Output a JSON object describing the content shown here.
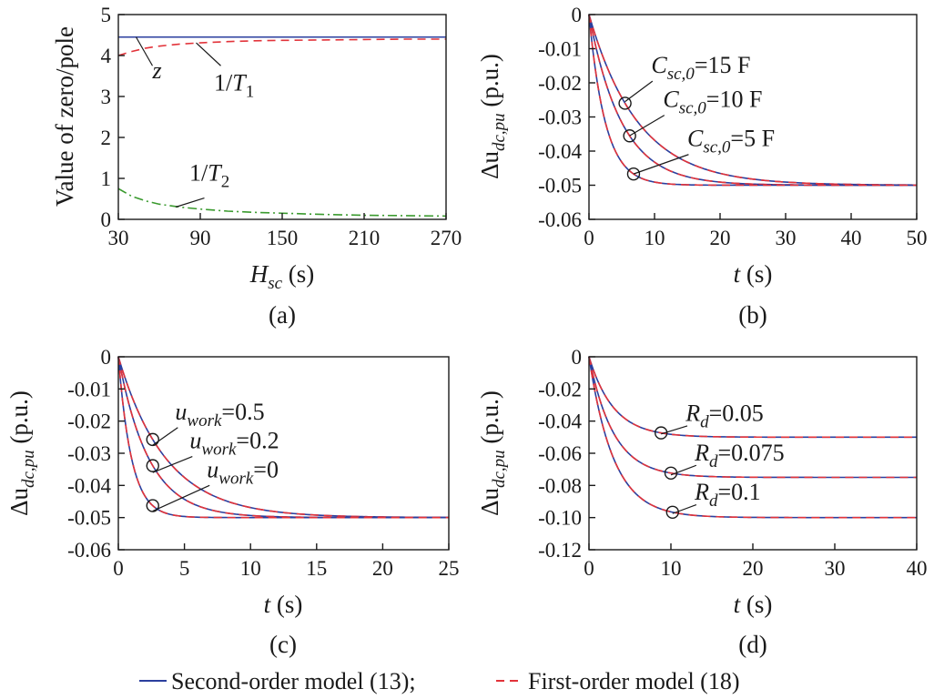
{
  "colors": {
    "blue": "#2b3f9e",
    "red": "#e2333a",
    "green": "#3a9a2e",
    "axis": "#1a1a1a"
  },
  "legend": {
    "solid_label": "Second-order model (13);",
    "dashed_label": "First-order model (18)"
  },
  "chart_data": [
    {
      "id": "a",
      "type": "line",
      "panel_label": "(a)",
      "xlabel_main": "H",
      "xlabel_sub": "sc",
      "xlabel_unit": " (s)",
      "ylabel": "Value of zero/pole",
      "xlim": [
        30,
        270
      ],
      "ylim": [
        0,
        5
      ],
      "xticks": [
        30,
        90,
        150,
        210,
        270
      ],
      "xtick_labels": [
        "30",
        "90",
        "150",
        "210",
        "270"
      ],
      "yticks": [
        0,
        1,
        2,
        3,
        4,
        5
      ],
      "ytick_labels": [
        "0",
        "1",
        "2",
        "3",
        "4",
        "5"
      ],
      "series": [
        {
          "name": "z",
          "style": "solid",
          "color": "blue",
          "x": [
            30,
            270
          ],
          "y": [
            4.45,
            4.45
          ]
        },
        {
          "name": "1/T1",
          "style": "dashed",
          "color": "red",
          "x": [
            30,
            40,
            50,
            60,
            75,
            90,
            110,
            130,
            150,
            180,
            210,
            240,
            270
          ],
          "y": [
            4.0,
            4.1,
            4.18,
            4.23,
            4.28,
            4.31,
            4.34,
            4.36,
            4.37,
            4.38,
            4.39,
            4.4,
            4.4
          ]
        },
        {
          "name": "1/T2",
          "style": "dashdot",
          "color": "green",
          "x": [
            30,
            40,
            50,
            60,
            75,
            90,
            110,
            130,
            150,
            180,
            210,
            240,
            270
          ],
          "y": [
            0.75,
            0.56,
            0.45,
            0.37,
            0.3,
            0.25,
            0.2,
            0.17,
            0.15,
            0.12,
            0.1,
            0.09,
            0.08
          ]
        }
      ],
      "annotations": [
        {
          "id": "z",
          "main": "z",
          "sub": "",
          "x": 55,
          "y": 3.45,
          "leader": [
            [
              55,
              3.75
            ],
            [
              43,
              4.45
            ]
          ]
        },
        {
          "id": "t1",
          "main": "1/T",
          "sub": "1",
          "x": 100,
          "y": 3.15,
          "leader": [
            [
              105,
              3.75
            ],
            [
              87,
              4.31
            ]
          ]
        },
        {
          "id": "t2",
          "main": "1/T",
          "sub": "2",
          "x": 82,
          "y": 0.95,
          "leader": [
            [
              93,
              0.52
            ],
            [
              72,
              0.3
            ]
          ]
        }
      ]
    },
    {
      "id": "b",
      "type": "line",
      "panel_label": "(b)",
      "xlabel_main": "t",
      "xlabel_sub": "",
      "xlabel_unit": " (s)",
      "ylabel_main": "Δu",
      "ylabel_sub": "dc,pu",
      "ylabel_unit": " (p.u.)",
      "xlim": [
        0,
        50
      ],
      "ylim": [
        -0.06,
        0
      ],
      "xticks": [
        0,
        10,
        20,
        30,
        40,
        50
      ],
      "xtick_labels": [
        "0",
        "10",
        "20",
        "30",
        "40",
        "50"
      ],
      "yticks": [
        0,
        -0.01,
        -0.02,
        -0.03,
        -0.04,
        -0.05,
        -0.06
      ],
      "ytick_labels": [
        "0",
        "-0.01",
        "-0.02",
        "-0.03",
        "-0.04",
        "-0.05",
        "-0.06"
      ],
      "steady_state": -0.05,
      "curves": [
        {
          "param": "Csc,0=15 F",
          "tau": 7.5,
          "marker_x": 5.5
        },
        {
          "param": "Csc,0=10 F",
          "tau": 5.0,
          "marker_x": 6.2
        },
        {
          "param": "Csc,0=5 F",
          "tau": 2.5,
          "marker_x": 6.8
        }
      ],
      "annotations": [
        {
          "id": "c15",
          "main": "C",
          "sub": "sc,0",
          "rest": "=15 F",
          "x": 9.5,
          "y": -0.017,
          "leader": [
            [
              9.7,
              -0.0195
            ],
            [
              5.5,
              -0.0255
            ]
          ]
        },
        {
          "id": "c10",
          "main": "C",
          "sub": "sc,0",
          "rest": "=10 F",
          "x": 11.3,
          "y": -0.027,
          "leader": [
            [
              11.5,
              -0.0295
            ],
            [
              6.2,
              -0.0355
            ]
          ]
        },
        {
          "id": "c5",
          "main": "C",
          "sub": "sc,0",
          "rest": "=5 F",
          "x": 15.0,
          "y": -0.0385,
          "leader": [
            [
              15.2,
              -0.041
            ],
            [
              6.8,
              -0.0467
            ]
          ]
        }
      ]
    },
    {
      "id": "c",
      "type": "line",
      "panel_label": "(c)",
      "xlabel_main": "t",
      "xlabel_sub": "",
      "xlabel_unit": " (s)",
      "ylabel_main": "Δu",
      "ylabel_sub": "dc,pu",
      "ylabel_unit": " (p.u.)",
      "xlim": [
        0,
        25
      ],
      "ylim": [
        -0.06,
        0
      ],
      "xticks": [
        0,
        5,
        10,
        15,
        20,
        25
      ],
      "xtick_labels": [
        "0",
        "5",
        "10",
        "15",
        "20",
        "25"
      ],
      "yticks": [
        0,
        -0.01,
        -0.02,
        -0.03,
        -0.04,
        -0.05,
        -0.06
      ],
      "ytick_labels": [
        "0",
        "-0.01",
        "-0.02",
        "-0.03",
        "-0.04",
        "-0.05",
        "-0.06"
      ],
      "steady_state": -0.05,
      "curves": [
        {
          "param": "uwork=0.5",
          "tau": 3.6,
          "marker_x": 2.6
        },
        {
          "param": "uwork=0.2",
          "tau": 2.3,
          "marker_x": 2.6
        },
        {
          "param": "uwork=0",
          "tau": 1.0,
          "marker_x": 2.6
        }
      ],
      "annotations": [
        {
          "id": "u05",
          "main": "u",
          "sub": "work",
          "rest": "=0.5",
          "x": 4.3,
          "y": -0.0195,
          "leader": [
            [
              4.5,
              -0.022
            ],
            [
              2.6,
              -0.0275
            ]
          ]
        },
        {
          "id": "u02",
          "main": "u",
          "sub": "work",
          "rest": "=0.2",
          "x": 5.4,
          "y": -0.0285,
          "leader": [
            [
              5.6,
              -0.031
            ],
            [
              2.6,
              -0.036
            ]
          ]
        },
        {
          "id": "u0",
          "main": "u",
          "sub": "work",
          "rest": "=0",
          "x": 6.7,
          "y": -0.0375,
          "leader": [
            [
              6.9,
              -0.04
            ],
            [
              2.6,
              -0.048
            ]
          ]
        }
      ]
    },
    {
      "id": "d",
      "type": "line",
      "panel_label": "(d)",
      "xlabel_main": "t",
      "xlabel_sub": "",
      "xlabel_unit": " (s)",
      "ylabel_main": "Δu",
      "ylabel_sub": "dc,pu",
      "ylabel_unit": " (p.u.)",
      "xlim": [
        0,
        40
      ],
      "ylim": [
        -0.12,
        0
      ],
      "xticks": [
        0,
        10,
        20,
        30,
        40
      ],
      "xtick_labels": [
        "0",
        "10",
        "20",
        "30",
        "40"
      ],
      "yticks": [
        0,
        -0.02,
        -0.04,
        -0.06,
        -0.08,
        -0.1,
        -0.12
      ],
      "ytick_labels": [
        "0",
        "-0.02",
        "-0.04",
        "-0.06",
        "-0.08",
        "-0.10",
        "-0.12"
      ],
      "curves": [
        {
          "param": "Rd=0.05",
          "final": -0.05,
          "tau": 3.0,
          "marker_x": 8.8
        },
        {
          "param": "Rd=0.075",
          "final": -0.075,
          "tau": 3.0,
          "marker_x": 10.0
        },
        {
          "param": "Rd=0.1",
          "final": -0.1,
          "tau": 3.0,
          "marker_x": 10.2
        }
      ],
      "annotations": [
        {
          "id": "r005",
          "main": "R",
          "sub": "d",
          "rest": "=0.05",
          "x": 11.8,
          "y": -0.04,
          "leader": [
            [
              12.0,
              -0.043
            ],
            [
              8.8,
              -0.048
            ]
          ]
        },
        {
          "id": "r0075",
          "main": "R",
          "sub": "d",
          "rest": "=0.075",
          "x": 12.9,
          "y": -0.0645,
          "leader": [
            [
              13.1,
              -0.0675
            ],
            [
              10.0,
              -0.0735
            ]
          ]
        },
        {
          "id": "r01",
          "main": "R",
          "sub": "d",
          "rest": "=0.1",
          "x": 12.9,
          "y": -0.089,
          "leader": [
            [
              13.1,
              -0.092
            ],
            [
              10.2,
              -0.0975
            ]
          ]
        }
      ]
    }
  ]
}
